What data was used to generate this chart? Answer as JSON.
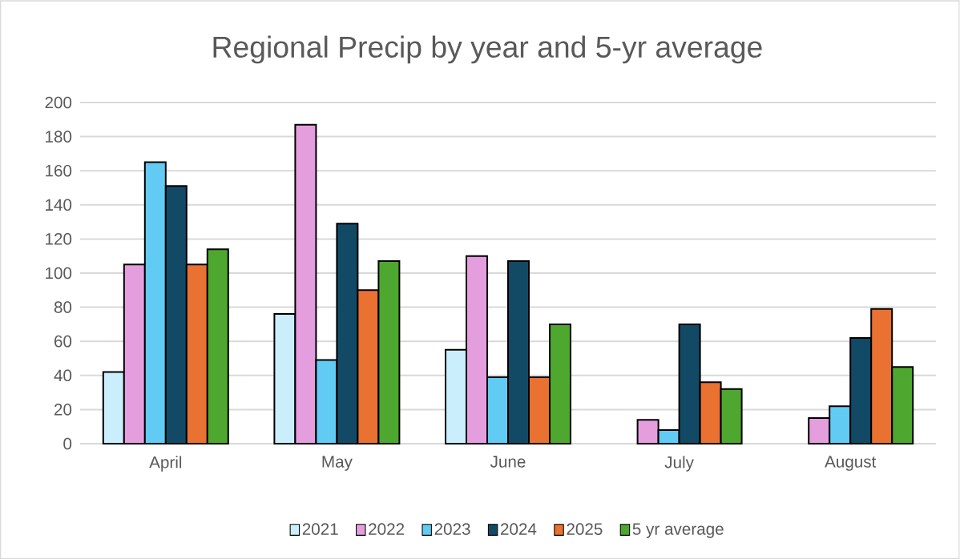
{
  "chart_data": {
    "type": "bar",
    "title": "Regional Precip by year and 5-yr average",
    "categories": [
      "April",
      "May",
      "June",
      "July",
      "August"
    ],
    "series": [
      {
        "name": "2021",
        "color": "#caeefb",
        "values": [
          42,
          76,
          55,
          null,
          null
        ]
      },
      {
        "name": "2022",
        "color": "#e59edd",
        "values": [
          105,
          187,
          110,
          14,
          15
        ]
      },
      {
        "name": "2023",
        "color": "#61cbf3",
        "values": [
          165,
          49,
          39,
          8,
          22
        ]
      },
      {
        "name": "2024",
        "color": "#124a66",
        "values": [
          151,
          129,
          107,
          70,
          62
        ]
      },
      {
        "name": "2025",
        "color": "#e97132",
        "values": [
          105,
          90,
          39,
          36,
          79
        ]
      },
      {
        "name": "5 yr average",
        "color": "#4ea72e",
        "values": [
          114,
          107,
          70,
          32,
          45
        ]
      }
    ],
    "ylim": [
      0,
      200
    ],
    "yticks": [
      0,
      20,
      40,
      60,
      80,
      100,
      120,
      140,
      160,
      180,
      200
    ],
    "grid": "y",
    "legend": "bottom"
  }
}
